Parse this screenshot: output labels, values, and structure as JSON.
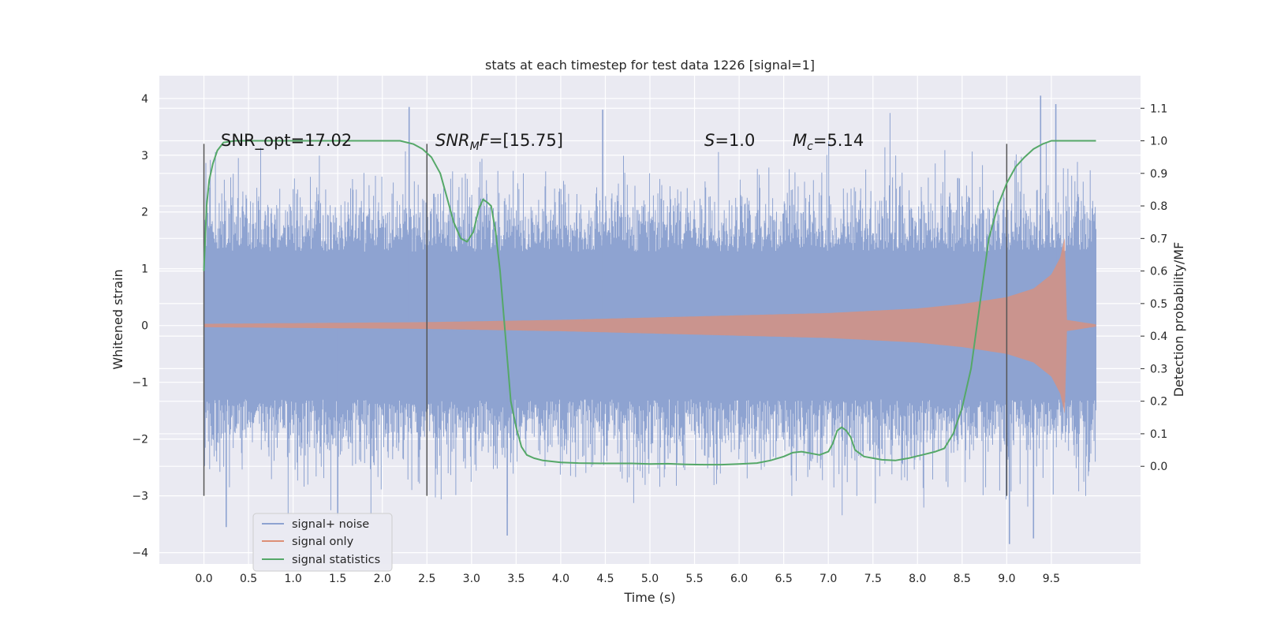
{
  "chart_data": {
    "type": "line",
    "title": "stats at each timestep for test data 1226 [signal=1]",
    "xlabel": "Time (s)",
    "ylabel": "Whitened strain",
    "ylabel_right": "Detection probability/MF",
    "xlim": [
      -0.5,
      10.5
    ],
    "ylim": [
      -4.2,
      4.4
    ],
    "ylim_right": [
      -0.3,
      1.2
    ],
    "x_ticks": [
      "0.0",
      "0.5",
      "1.0",
      "1.5",
      "2.0",
      "2.5",
      "3.0",
      "3.5",
      "4.0",
      "4.5",
      "5.0",
      "5.5",
      "6.0",
      "6.5",
      "7.0",
      "7.5",
      "8.0",
      "8.5",
      "9.0",
      "9.5"
    ],
    "y_ticks": [
      "4",
      "3",
      "2",
      "1",
      "0",
      "−1",
      "−2",
      "−3",
      "−4"
    ],
    "y_ticks_right": [
      "1.1",
      "1.0",
      "0.9",
      "0.8",
      "0.7",
      "0.6",
      "0.5",
      "0.4",
      "0.3",
      "0.2",
      "0.1",
      "0.0"
    ],
    "grid": true,
    "legend_position": "bottom-left",
    "annotations": [
      {
        "plain": "SNR_opt=17.02"
      },
      {
        "italic": "SNR",
        "sub": "M",
        "italic2": "F",
        "rest": "=[15.75]"
      },
      {
        "italic": "S",
        "rest": "=1.0"
      },
      {
        "italic": "M",
        "sub": "c",
        "rest": "=5.14"
      }
    ],
    "vertical_markers": [
      {
        "x": 0.0,
        "y_range": [
          -3.0,
          3.2
        ]
      },
      {
        "x": 2.5,
        "y_range": [
          -3.0,
          3.2
        ]
      },
      {
        "x": 9.0,
        "y_range": [
          -3.0,
          3.2
        ]
      }
    ],
    "series": [
      {
        "name": "signal+ noise",
        "color": "#8ea3d1",
        "axis": "left",
        "x_range": [
          0.0,
          10.0
        ],
        "envelope": [
          [
            0.0,
            1.3
          ],
          [
            2.5,
            1.3
          ],
          [
            5.0,
            1.3
          ],
          [
            7.5,
            1.3
          ],
          [
            10.0,
            1.3
          ]
        ],
        "notable_peaks": [
          {
            "x": 2.3,
            "y": 3.85
          },
          {
            "x": 4.47,
            "y": 3.8
          },
          {
            "x": 9.38,
            "y": 4.05
          },
          {
            "x": 9.55,
            "y": 3.9
          },
          {
            "x": 9.03,
            "y": -3.85
          },
          {
            "x": 3.4,
            "y": -3.7
          },
          {
            "x": 0.25,
            "y": -3.55
          },
          {
            "x": 9.3,
            "y": -3.75
          },
          {
            "x": 1.5,
            "y": -3.35
          }
        ]
      },
      {
        "name": "signal only",
        "color": "#dd8f77",
        "axis": "left",
        "x_range": [
          0.0,
          10.0
        ],
        "envelope": [
          [
            0.0,
            0.03
          ],
          [
            2.5,
            0.06
          ],
          [
            4.0,
            0.1
          ],
          [
            5.0,
            0.14
          ],
          [
            6.0,
            0.18
          ],
          [
            7.0,
            0.22
          ],
          [
            8.0,
            0.3
          ],
          [
            8.5,
            0.38
          ],
          [
            9.0,
            0.5
          ],
          [
            9.3,
            0.65
          ],
          [
            9.5,
            0.9
          ],
          [
            9.6,
            1.2
          ],
          [
            9.65,
            1.55
          ],
          [
            9.67,
            0.1
          ],
          [
            10.0,
            0.02
          ]
        ]
      },
      {
        "name": "signal statistics",
        "color": "#55a868",
        "axis": "right",
        "x": [
          0.0,
          0.03,
          0.06,
          0.1,
          0.15,
          0.22,
          0.35,
          0.6,
          1.0,
          1.5,
          2.0,
          2.2,
          2.35,
          2.45,
          2.55,
          2.65,
          2.72,
          2.8,
          2.88,
          2.95,
          3.02,
          3.08,
          3.13,
          3.18,
          3.22,
          3.27,
          3.32,
          3.38,
          3.44,
          3.5,
          3.56,
          3.62,
          3.7,
          3.8,
          4.0,
          4.2,
          4.5,
          4.8,
          5.0,
          5.2,
          5.4,
          5.6,
          5.8,
          6.0,
          6.2,
          6.35,
          6.5,
          6.6,
          6.7,
          6.8,
          6.9,
          7.0,
          7.05,
          7.1,
          7.15,
          7.2,
          7.25,
          7.3,
          7.4,
          7.5,
          7.6,
          7.75,
          7.9,
          8.05,
          8.2,
          8.3,
          8.4,
          8.5,
          8.6,
          8.7,
          8.8,
          8.9,
          9.0,
          9.1,
          9.2,
          9.3,
          9.4,
          9.5,
          9.6,
          9.7,
          9.9,
          10.0
        ],
        "values": [
          0.6,
          0.8,
          0.88,
          0.93,
          0.97,
          0.995,
          1.0,
          1.0,
          1.0,
          1.0,
          1.0,
          1.0,
          0.99,
          0.975,
          0.95,
          0.9,
          0.83,
          0.75,
          0.7,
          0.69,
          0.72,
          0.79,
          0.82,
          0.81,
          0.8,
          0.72,
          0.6,
          0.4,
          0.2,
          0.12,
          0.06,
          0.035,
          0.025,
          0.018,
          0.012,
          0.01,
          0.009,
          0.009,
          0.007,
          0.008,
          0.006,
          0.005,
          0.005,
          0.007,
          0.01,
          0.018,
          0.03,
          0.042,
          0.045,
          0.04,
          0.035,
          0.045,
          0.07,
          0.11,
          0.12,
          0.11,
          0.09,
          0.05,
          0.03,
          0.025,
          0.02,
          0.018,
          0.025,
          0.035,
          0.045,
          0.055,
          0.1,
          0.18,
          0.3,
          0.5,
          0.7,
          0.8,
          0.87,
          0.92,
          0.95,
          0.975,
          0.99,
          1.0,
          1.0,
          1.0,
          1.0,
          1.0
        ]
      }
    ]
  }
}
